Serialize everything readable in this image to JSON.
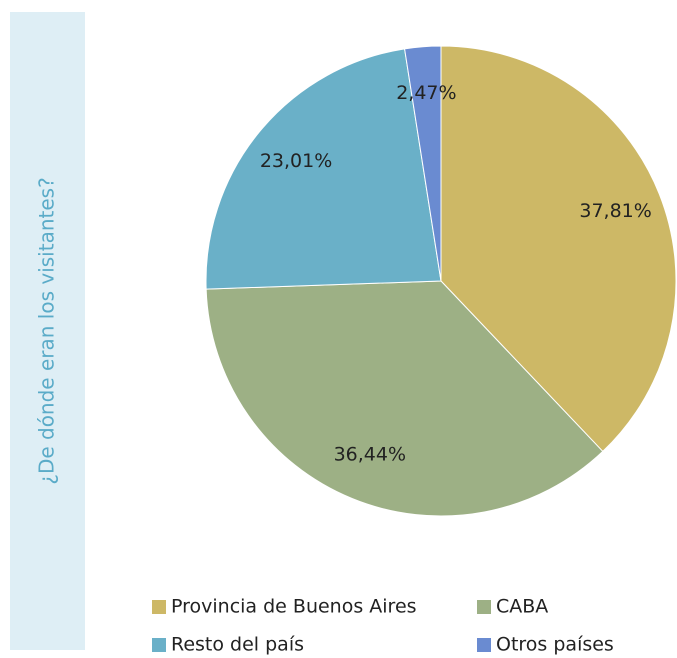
{
  "chart_data": {
    "type": "pie",
    "title": "¿De dónde eran los visitantes?",
    "categories": [
      "Provincia de Buenos Aires",
      "CABA",
      "Resto del país",
      "Otros países"
    ],
    "values": [
      37.81,
      36.44,
      23.01,
      2.47
    ],
    "value_labels": [
      "37,81%",
      "36,44%",
      "23,01%",
      "2,47%"
    ],
    "colors": [
      "#cdb866",
      "#9db085",
      "#6ab0c8",
      "#6a8bd1"
    ]
  }
}
